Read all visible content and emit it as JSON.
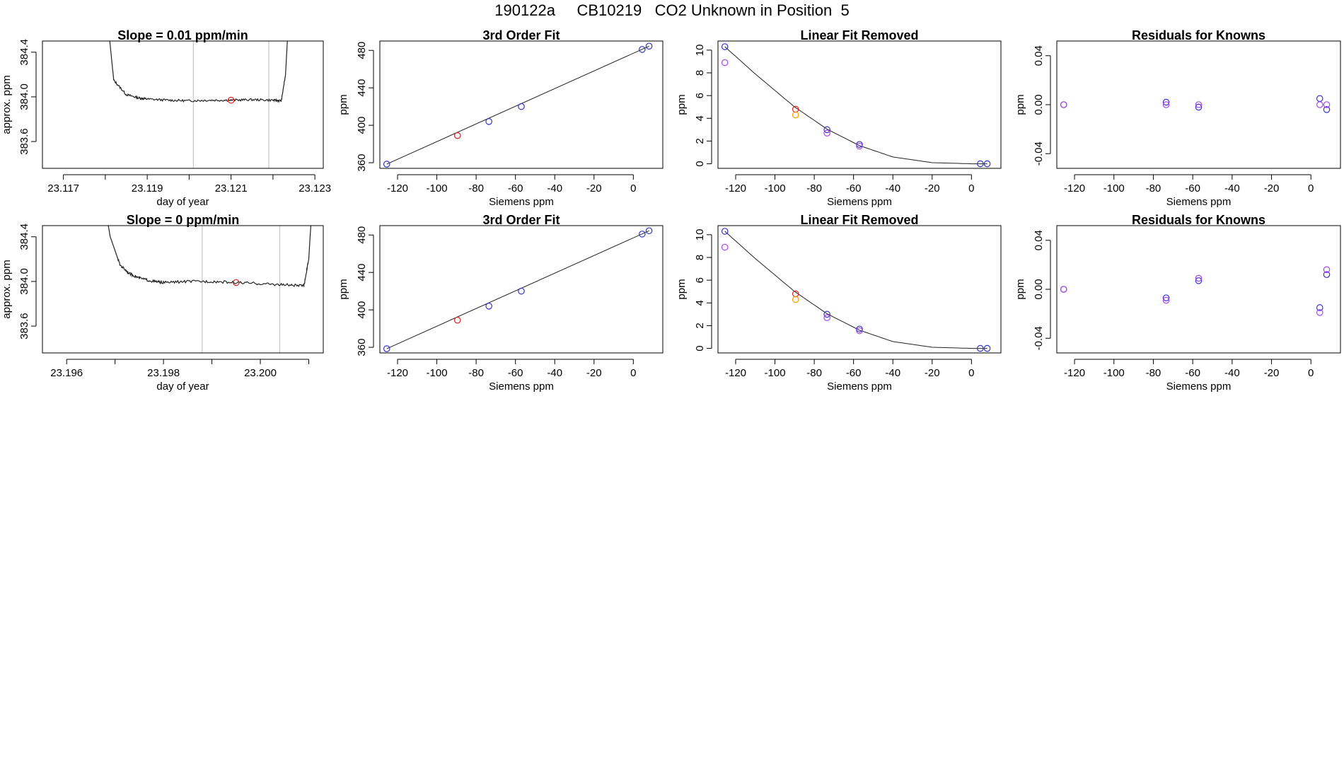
{
  "figure": {
    "main_title": "190122a     CB10219   CO2 Unknown in Position  5"
  },
  "colors": {
    "axis": "#000000",
    "trace": "#222222",
    "vline": "#bbbbbb",
    "known_blue": "#3333cc",
    "known_violet": "#aa44ee",
    "unknown_red": "#dd2222",
    "unknown_orange": "#ff9900"
  },
  "chart_data": [
    {
      "id": "r1c1",
      "type": "line",
      "title": "Slope =  0.01  ppm/min",
      "xlabel": "day of year",
      "ylabel": "approx. ppm",
      "xlim": [
        23.1165,
        23.1232
      ],
      "ylim": [
        383.36,
        384.5
      ],
      "xticks": [
        23.117,
        23.118,
        23.119,
        23.12,
        23.121,
        23.122,
        23.123
      ],
      "xticklabels": [
        "23.117",
        "",
        "23.119",
        "",
        "23.121",
        "",
        "23.123"
      ],
      "yticks": [
        383.6,
        384.0,
        384.4
      ],
      "yticklabels": [
        "383.6",
        "384.0",
        "384.4"
      ],
      "vlines": [
        23.1201,
        23.1219
      ],
      "trace": {
        "x": [
          23.118,
          23.1182,
          23.1185,
          23.1188,
          23.119,
          23.1195,
          23.12,
          23.1205,
          23.121,
          23.1215,
          23.122,
          23.1222,
          23.1223,
          23.1224
        ],
        "y": [
          384.9,
          384.15,
          384.02,
          383.99,
          383.98,
          383.97,
          383.965,
          383.97,
          383.97,
          383.975,
          383.97,
          383.965,
          384.2,
          384.9
        ],
        "noise": 0.01
      },
      "points": [
        {
          "x": 23.121,
          "y": 383.97,
          "color": "unknown_red"
        }
      ]
    },
    {
      "id": "r1c2",
      "type": "scatter",
      "title": "3rd Order Fit",
      "xlabel": "Siemens ppm",
      "ylabel": "ppm",
      "xlim": [
        -129,
        15
      ],
      "ylim": [
        354,
        490
      ],
      "xticks": [
        -120,
        -100,
        -80,
        -60,
        -40,
        -20,
        0
      ],
      "xticklabels": [
        "-120",
        "-100",
        "-80",
        "-60",
        "-40",
        "-20",
        "0"
      ],
      "yticks": [
        360,
        400,
        440,
        480
      ],
      "yticklabels": [
        "360",
        "400",
        "440",
        "480"
      ],
      "curve": {
        "x": [
          -125.5,
          8
        ],
        "y": [
          358.5,
          484.5
        ]
      },
      "points": [
        {
          "x": -125.5,
          "y": 358.5,
          "color": "known_blue"
        },
        {
          "x": -89.5,
          "y": 389,
          "color": "unknown_red"
        },
        {
          "x": -73.5,
          "y": 404,
          "color": "known_blue"
        },
        {
          "x": -57,
          "y": 420,
          "color": "known_blue"
        },
        {
          "x": 4.5,
          "y": 481,
          "color": "known_blue"
        },
        {
          "x": 8,
          "y": 484.5,
          "color": "known_blue"
        }
      ]
    },
    {
      "id": "r1c3",
      "type": "scatter",
      "title": "Linear Fit Removed",
      "xlabel": "Siemens ppm",
      "ylabel": "ppm",
      "xlim": [
        -129,
        15
      ],
      "ylim": [
        -0.4,
        10.8
      ],
      "xticks": [
        -120,
        -100,
        -80,
        -60,
        -40,
        -20,
        0
      ],
      "xticklabels": [
        "-120",
        "-100",
        "-80",
        "-60",
        "-40",
        "-20",
        "0"
      ],
      "yticks": [
        0,
        2,
        4,
        6,
        8,
        10
      ],
      "yticklabels": [
        "0",
        "2",
        "4",
        "6",
        "8",
        "10"
      ],
      "curve": {
        "x": [
          -125.5,
          -110,
          -90,
          -73.5,
          -57,
          -40,
          -20,
          0,
          4.5,
          8
        ],
        "y": [
          10.3,
          7.9,
          5.0,
          3.05,
          1.6,
          0.6,
          0.1,
          0.0,
          0.0,
          0.0
        ]
      },
      "points": [
        {
          "x": -125.5,
          "y": 10.3,
          "color": "known_blue"
        },
        {
          "x": -125.5,
          "y": 8.9,
          "color": "known_violet"
        },
        {
          "x": -89.5,
          "y": 4.8,
          "color": "unknown_red"
        },
        {
          "x": -89.5,
          "y": 4.3,
          "color": "unknown_orange"
        },
        {
          "x": -73.5,
          "y": 3.0,
          "color": "known_blue"
        },
        {
          "x": -73.5,
          "y": 2.7,
          "color": "known_violet"
        },
        {
          "x": -57,
          "y": 1.7,
          "color": "known_blue"
        },
        {
          "x": -57,
          "y": 1.55,
          "color": "known_violet"
        },
        {
          "x": 4.5,
          "y": 0.0,
          "color": "known_blue"
        },
        {
          "x": 8,
          "y": 0.0,
          "color": "known_blue"
        }
      ]
    },
    {
      "id": "r1c4",
      "type": "scatter",
      "title": "Residuals for Knowns",
      "xlabel": "Siemens ppm",
      "ylabel": "ppm",
      "xlim": [
        -129,
        15
      ],
      "ylim": [
        -0.052,
        0.052
      ],
      "xticks": [
        -120,
        -100,
        -80,
        -60,
        -40,
        -20,
        0
      ],
      "xticklabels": [
        "-120",
        "-100",
        "-80",
        "-60",
        "-40",
        "-20",
        "0"
      ],
      "yticks": [
        -0.04,
        0.0,
        0.04
      ],
      "yticklabels": [
        "-0.04",
        "0.00",
        "0.04"
      ],
      "points": [
        {
          "x": -125.5,
          "y": 0.0,
          "color": "known_blue"
        },
        {
          "x": -125.5,
          "y": 0.0,
          "color": "known_violet"
        },
        {
          "x": -73.5,
          "y": 0.002,
          "color": "known_blue"
        },
        {
          "x": -73.5,
          "y": 0.0,
          "color": "known_violet"
        },
        {
          "x": -57,
          "y": -0.002,
          "color": "known_blue"
        },
        {
          "x": -57,
          "y": 0.0,
          "color": "known_violet"
        },
        {
          "x": 4.5,
          "y": 0.005,
          "color": "known_blue"
        },
        {
          "x": 4.5,
          "y": 0.0,
          "color": "known_violet"
        },
        {
          "x": 8,
          "y": -0.004,
          "color": "known_blue"
        },
        {
          "x": 8,
          "y": 0.0,
          "color": "known_violet"
        }
      ]
    },
    {
      "id": "r2c1",
      "type": "line",
      "title": "Slope =  0  ppm/min",
      "xlabel": "day of year",
      "ylabel": "approx. ppm",
      "xlim": [
        23.1955,
        23.2013
      ],
      "ylim": [
        383.36,
        384.5
      ],
      "xticks": [
        23.196,
        23.197,
        23.198,
        23.199,
        23.2,
        23.201
      ],
      "xticklabels": [
        "23.196",
        "",
        "23.198",
        "",
        "23.200",
        ""
      ],
      "yticks": [
        383.6,
        384.0,
        384.4
      ],
      "yticklabels": [
        "383.6",
        "384.0",
        "384.4"
      ],
      "vlines": [
        23.1988,
        23.2004
      ],
      "trace": {
        "x": [
          23.1967,
          23.1969,
          23.1971,
          23.1973,
          23.1975,
          23.1978,
          23.198,
          23.1985,
          23.199,
          23.1995,
          23.2,
          23.2005,
          23.2009,
          23.201,
          23.2011
        ],
        "y": [
          384.9,
          384.4,
          384.15,
          384.07,
          384.03,
          384.0,
          383.99,
          384.0,
          384.0,
          383.99,
          383.98,
          383.97,
          383.96,
          384.2,
          384.9
        ],
        "noise": 0.012
      },
      "points": [
        {
          "x": 23.1995,
          "y": 383.99,
          "color": "unknown_red"
        }
      ]
    },
    {
      "id": "r2c2",
      "type": "scatter",
      "title": "3rd Order Fit",
      "xlabel": "Siemens ppm",
      "ylabel": "ppm",
      "xlim": [
        -129,
        15
      ],
      "ylim": [
        354,
        490
      ],
      "xticks": [
        -120,
        -100,
        -80,
        -60,
        -40,
        -20,
        0
      ],
      "xticklabels": [
        "-120",
        "-100",
        "-80",
        "-60",
        "-40",
        "-20",
        "0"
      ],
      "yticks": [
        360,
        400,
        440,
        480
      ],
      "yticklabels": [
        "360",
        "400",
        "440",
        "480"
      ],
      "curve": {
        "x": [
          -125.5,
          8
        ],
        "y": [
          358.5,
          484.5
        ]
      },
      "points": [
        {
          "x": -125.5,
          "y": 358.5,
          "color": "known_blue"
        },
        {
          "x": -89.5,
          "y": 389,
          "color": "unknown_red"
        },
        {
          "x": -73.5,
          "y": 404,
          "color": "known_blue"
        },
        {
          "x": -57,
          "y": 420,
          "color": "known_blue"
        },
        {
          "x": 4.5,
          "y": 481,
          "color": "known_blue"
        },
        {
          "x": 8,
          "y": 484.5,
          "color": "known_blue"
        }
      ]
    },
    {
      "id": "r2c3",
      "type": "scatter",
      "title": "Linear Fit Removed",
      "xlabel": "Siemens ppm",
      "ylabel": "ppm",
      "xlim": [
        -129,
        15
      ],
      "ylim": [
        -0.4,
        10.8
      ],
      "xticks": [
        -120,
        -100,
        -80,
        -60,
        -40,
        -20,
        0
      ],
      "xticklabels": [
        "-120",
        "-100",
        "-80",
        "-60",
        "-40",
        "-20",
        "0"
      ],
      "yticks": [
        0,
        2,
        4,
        6,
        8,
        10
      ],
      "yticklabels": [
        "0",
        "2",
        "4",
        "6",
        "8",
        "10"
      ],
      "curve": {
        "x": [
          -125.5,
          -110,
          -90,
          -73.5,
          -57,
          -40,
          -20,
          0,
          4.5,
          8
        ],
        "y": [
          10.3,
          7.9,
          5.0,
          3.05,
          1.6,
          0.6,
          0.1,
          0.0,
          0.0,
          0.0
        ]
      },
      "points": [
        {
          "x": -125.5,
          "y": 10.3,
          "color": "known_blue"
        },
        {
          "x": -125.5,
          "y": 8.9,
          "color": "known_violet"
        },
        {
          "x": -89.5,
          "y": 4.8,
          "color": "unknown_red"
        },
        {
          "x": -89.5,
          "y": 4.3,
          "color": "unknown_orange"
        },
        {
          "x": -73.5,
          "y": 3.0,
          "color": "known_blue"
        },
        {
          "x": -73.5,
          "y": 2.7,
          "color": "known_violet"
        },
        {
          "x": -57,
          "y": 1.7,
          "color": "known_blue"
        },
        {
          "x": -57,
          "y": 1.55,
          "color": "known_violet"
        },
        {
          "x": 4.5,
          "y": 0.0,
          "color": "known_blue"
        },
        {
          "x": 8,
          "y": 0.0,
          "color": "known_blue"
        }
      ]
    },
    {
      "id": "r2c4",
      "type": "scatter",
      "title": "Residuals for Knowns",
      "xlabel": "Siemens ppm",
      "ylabel": "ppm",
      "xlim": [
        -129,
        15
      ],
      "ylim": [
        -0.052,
        0.052
      ],
      "xticks": [
        -120,
        -100,
        -80,
        -60,
        -40,
        -20,
        0
      ],
      "xticklabels": [
        "-120",
        "-100",
        "-80",
        "-60",
        "-40",
        "-20",
        "0"
      ],
      "yticks": [
        -0.04,
        0.0,
        0.04
      ],
      "yticklabels": [
        "-0.04",
        "0.00",
        "0.04"
      ],
      "points": [
        {
          "x": -125.5,
          "y": 0.0,
          "color": "known_blue"
        },
        {
          "x": -125.5,
          "y": 0.0,
          "color": "known_violet"
        },
        {
          "x": -73.5,
          "y": -0.007,
          "color": "known_blue"
        },
        {
          "x": -73.5,
          "y": -0.009,
          "color": "known_violet"
        },
        {
          "x": -57,
          "y": 0.007,
          "color": "known_blue"
        },
        {
          "x": -57,
          "y": 0.009,
          "color": "known_violet"
        },
        {
          "x": 4.5,
          "y": -0.015,
          "color": "known_blue"
        },
        {
          "x": 4.5,
          "y": -0.019,
          "color": "known_violet"
        },
        {
          "x": 8,
          "y": 0.012,
          "color": "known_blue"
        },
        {
          "x": 8,
          "y": 0.016,
          "color": "known_violet"
        }
      ]
    }
  ]
}
